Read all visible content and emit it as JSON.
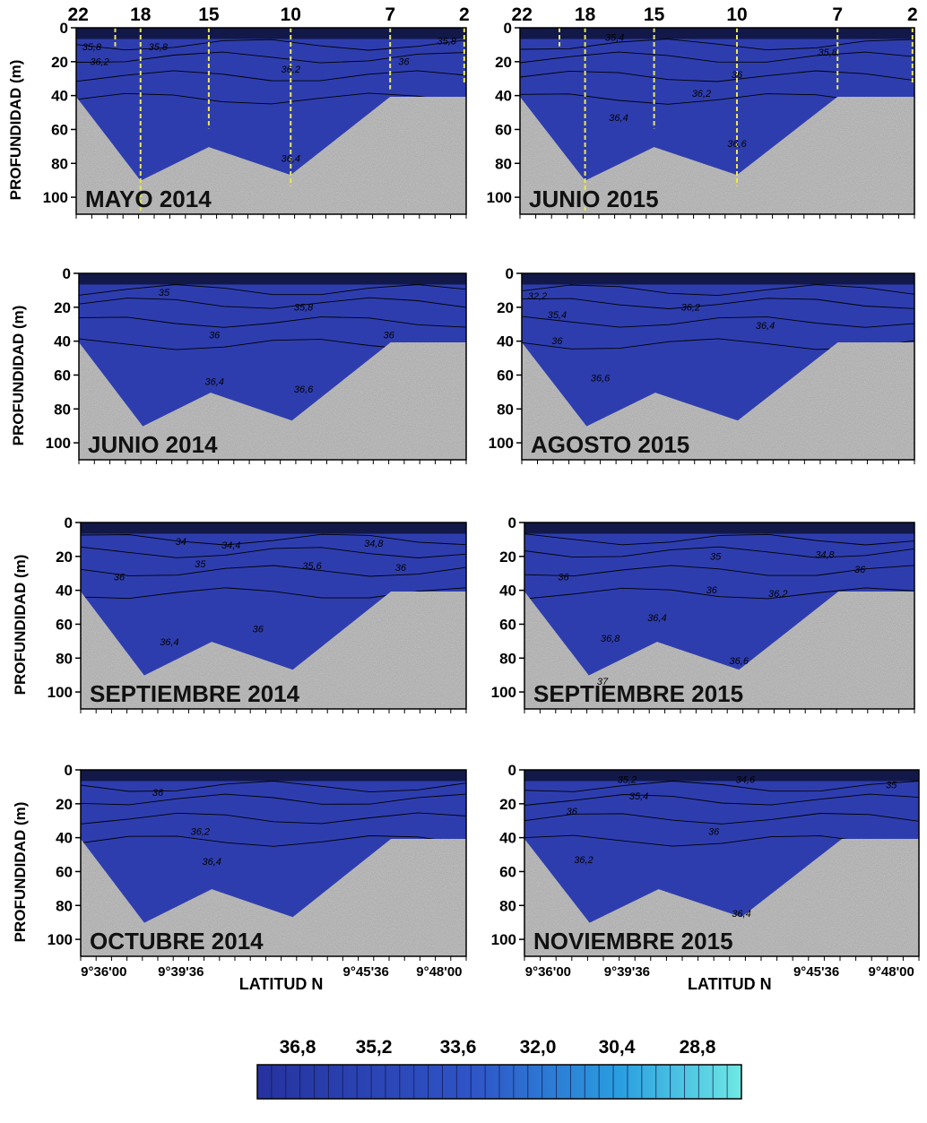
{
  "figure": {
    "colorbar": {
      "labels": [
        "36,8",
        "35,2",
        "33,6",
        "32,0",
        "30,4",
        "28,8"
      ],
      "color_high": "#2b38a8",
      "color_low": "#67e6e3"
    },
    "colors": {
      "water": "#2e3dae",
      "seafloor": "#a9a9a9",
      "station_line": "#e8e85a"
    }
  },
  "chart_data": [
    {
      "type": "heatmap",
      "title": "MAYO 2014",
      "ylabel": "PROFUNDIDAD (m)",
      "yticks": [
        "0",
        "20",
        "40",
        "60",
        "80",
        "100"
      ],
      "ylim": [
        0,
        110
      ],
      "stations": [
        "22",
        "18",
        "15",
        "10",
        "7",
        "2"
      ],
      "contour_labels": [
        "35,8",
        "36,2",
        "35,8",
        "36,2",
        "36",
        "35,8",
        "36,4"
      ]
    },
    {
      "type": "heatmap",
      "title": "JUNIO 2015",
      "ylabel": "",
      "yticks": [
        "0",
        "20",
        "40",
        "60",
        "80",
        "100"
      ],
      "ylim": [
        0,
        110
      ],
      "stations": [
        "22",
        "18",
        "15",
        "10",
        "7",
        "2"
      ],
      "contour_labels": [
        "35,4",
        "36",
        "35,8",
        "36,2",
        "36,4",
        "36,6"
      ]
    },
    {
      "type": "heatmap",
      "title": "JUNIO 2014",
      "ylabel": "PROFUNDIDAD (m)",
      "yticks": [
        "0",
        "20",
        "40",
        "60",
        "80",
        "100"
      ],
      "ylim": [
        0,
        110
      ],
      "contour_labels": [
        "35",
        "35,8",
        "36",
        "36",
        "36,4",
        "36,6"
      ]
    },
    {
      "type": "heatmap",
      "title": "AGOSTO 2015",
      "ylabel": "",
      "yticks": [
        "0",
        "20",
        "40",
        "60",
        "80",
        "100"
      ],
      "ylim": [
        0,
        110
      ],
      "contour_labels": [
        "32,2",
        "35,4",
        "36",
        "36,2",
        "36,4",
        "36,6"
      ]
    },
    {
      "type": "heatmap",
      "title": "SEPTIEMBRE 2014",
      "ylabel": "PROFUNDIDAD (m)",
      "yticks": [
        "0",
        "20",
        "40",
        "60",
        "80",
        "100"
      ],
      "ylim": [
        0,
        110
      ],
      "contour_labels": [
        "34",
        "34,4",
        "34,8",
        "35",
        "35,6",
        "36",
        "36",
        "36",
        "36,4"
      ]
    },
    {
      "type": "heatmap",
      "title": "SEPTIEMBRE 2015",
      "ylabel": "",
      "yticks": [
        "0",
        "20",
        "40",
        "60",
        "80",
        "100"
      ],
      "ylim": [
        0,
        110
      ],
      "contour_labels": [
        "35",
        "34,8",
        "36",
        "36",
        "36",
        "36,2",
        "36,4",
        "36,8",
        "36,6",
        "37"
      ]
    },
    {
      "type": "heatmap",
      "title": "OCTUBRE 2014",
      "ylabel": "PROFUNDIDAD (m)",
      "xlabel": "LATITUD N",
      "xticks": [
        "9°36'00",
        "9°39'36",
        "9°45'36",
        "9°48'00"
      ],
      "yticks": [
        "0",
        "20",
        "40",
        "60",
        "80",
        "100"
      ],
      "ylim": [
        0,
        110
      ],
      "contour_labels": [
        "36",
        "36,2",
        "36,4"
      ]
    },
    {
      "type": "heatmap",
      "title": "NOVIEMBRE 2015",
      "ylabel": "",
      "xlabel": "LATITUD N",
      "xticks": [
        "9°36'00",
        "9°39'36",
        "9°45'36",
        "9°48'00"
      ],
      "yticks": [
        "0",
        "20",
        "40",
        "60",
        "80",
        "100"
      ],
      "ylim": [
        0,
        110
      ],
      "contour_labels": [
        "35,2",
        "34,6",
        "35,4",
        "35",
        "36",
        "36",
        "36,2",
        "36,4"
      ]
    }
  ]
}
